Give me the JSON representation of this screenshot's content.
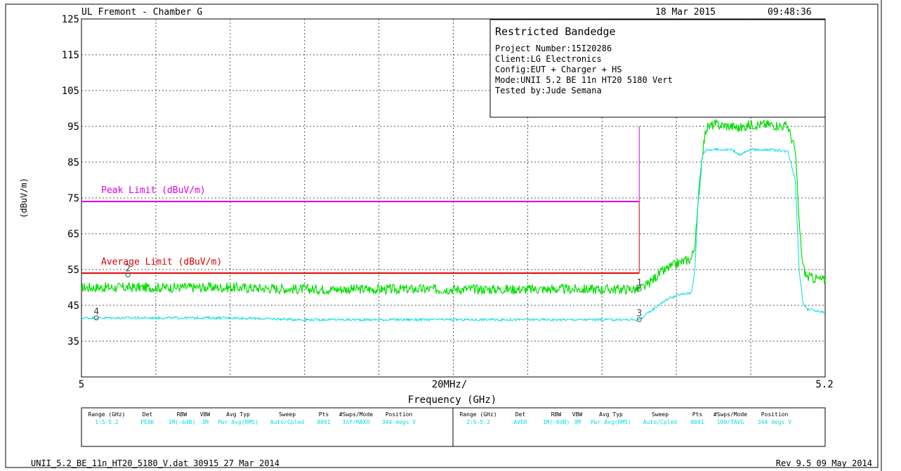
{
  "header": {
    "lab": "UL Fremont - Chamber G",
    "date": "18 Mar 2015",
    "time": "09:48:36"
  },
  "info_box": {
    "title": "Restricted Bandedge",
    "lines": [
      "Project Number:15I20286",
      "Client:LG Electronics",
      "Config:EUT + Charger + HS",
      "Mode:UNII 5.2 BE 11n HT20 5180 Vert",
      "Tested by:Jude Semana"
    ]
  },
  "footer": {
    "left": "UNII_5.2_BE_11n_HT20_5180_V.dat 30915 27 Mar 2014",
    "right": "Rev 9.5 09 May 2014"
  },
  "colors": {
    "peak_trace": "#00e000",
    "avg_trace": "#00dddd",
    "peak_limit": "#e000e0",
    "avg_limit": "#dd0000",
    "grid": "#555555"
  },
  "settings_table": {
    "headers": [
      "Range (GHz)",
      "Det",
      "RBW",
      "VBW",
      "Avg Typ",
      "Sweep",
      "Pts",
      "#Swps/Mode",
      "Position"
    ],
    "rows": [
      [
        "1:5-5.2",
        "PEAK",
        "1M(-6dB)",
        "3M",
        "Pwr Avg(RMS)",
        "Auto/Cpled",
        "8001",
        "Inf/MAXH",
        "344 degs V"
      ],
      [
        "2:5-5.2",
        "AVER",
        "1M(-6dB)",
        "3M",
        "Pwr Avg(RMS)",
        "Auto/Cpled",
        "8001",
        "100/TAVG",
        "344 degs V"
      ]
    ]
  },
  "chart_data": {
    "type": "line",
    "title": "",
    "xlabel": "Frequency (GHz)",
    "ylabel": "(dBuV/m)",
    "x_tick_start": "5",
    "x_tick_mid": "20MHz/",
    "x_tick_end": "5.2",
    "xlim": [
      5.0,
      5.2
    ],
    "ylim": [
      25,
      125
    ],
    "y_ticks": [
      35,
      45,
      55,
      65,
      75,
      85,
      95,
      105,
      115,
      125
    ],
    "y_tick_labels": [
      "35",
      "45",
      "55",
      "65",
      "75",
      "85",
      "95",
      "105",
      "115",
      "125"
    ],
    "grid": true,
    "limits": [
      {
        "name": "Peak Limit (dBuV/m)",
        "value": 74,
        "x_end": 5.15
      },
      {
        "name": "Average Limit (dBuV/m)",
        "value": 54,
        "x_end": 5.15
      }
    ],
    "series": [
      {
        "x": [
          5.0,
          5.02,
          5.04,
          5.06,
          5.08,
          5.1,
          5.12,
          5.14,
          5.15,
          5.152,
          5.155,
          5.158,
          5.161,
          5.164,
          5.165,
          5.166,
          5.167,
          5.168,
          5.17,
          5.175,
          5.177,
          5.18,
          5.185,
          5.19,
          5.192,
          5.193,
          5.194,
          5.195,
          5.2
        ],
        "y": [
          50,
          50,
          50,
          49.5,
          49.5,
          49.5,
          49.5,
          49.5,
          49.5,
          50.5,
          53.5,
          55.5,
          57,
          58,
          62,
          75,
          88,
          94.5,
          95.5,
          95,
          94.5,
          95.5,
          95.5,
          95,
          88,
          68,
          56,
          53,
          52
        ]
      },
      {
        "x": [
          5.0,
          5.02,
          5.04,
          5.06,
          5.08,
          5.1,
          5.12,
          5.14,
          5.15,
          5.152,
          5.155,
          5.158,
          5.161,
          5.164,
          5.165,
          5.166,
          5.167,
          5.168,
          5.17,
          5.175,
          5.177,
          5.18,
          5.185,
          5.19,
          5.192,
          5.193,
          5.194,
          5.195,
          5.2
        ],
        "y": [
          41.5,
          41.5,
          41.5,
          41,
          41,
          41,
          41,
          41,
          41,
          42.5,
          45,
          47,
          48,
          48.5,
          55,
          78,
          87,
          88.5,
          88.5,
          88.5,
          87,
          88.5,
          88.5,
          88,
          80,
          55,
          46,
          44,
          43
        ]
      }
    ],
    "markers": [
      {
        "label": "1",
        "x": 5.15,
        "y": 49.5
      },
      {
        "label": "2",
        "x": 5.0125,
        "y": 53.5
      },
      {
        "label": "3",
        "x": 5.15,
        "y": 41
      },
      {
        "label": "4",
        "x": 5.004,
        "y": 41.5
      }
    ]
  }
}
